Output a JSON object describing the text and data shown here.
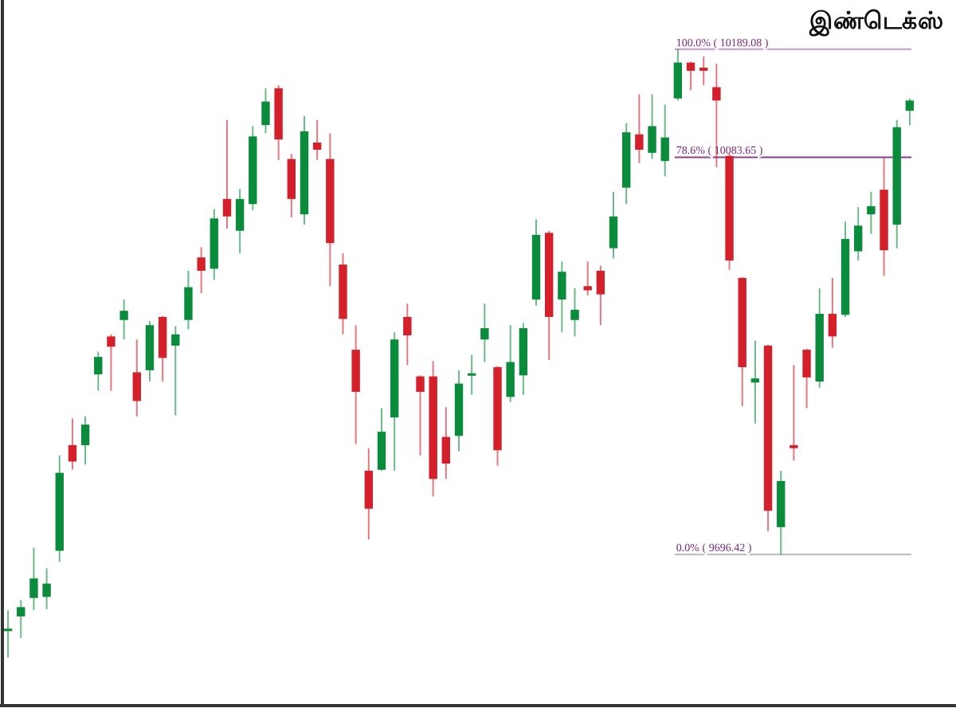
{
  "chart_data": {
    "type": "candlestick",
    "title": "இண்டெக்ஸ்",
    "ylim": [
      9549,
      10237
    ],
    "categories": [
      null,
      null,
      null,
      null,
      null,
      null,
      null,
      null,
      null,
      null,
      null,
      null,
      null,
      null,
      null,
      null,
      null,
      null,
      null,
      null,
      null,
      null,
      null,
      null,
      null,
      null,
      null,
      null,
      null,
      null,
      null,
      null,
      null,
      null,
      null,
      null,
      null,
      null,
      null,
      null,
      null,
      null,
      null,
      null,
      null,
      null,
      null,
      null,
      null,
      null,
      null,
      null,
      null,
      null,
      null,
      null,
      null,
      null,
      null,
      null,
      null,
      null,
      null,
      null,
      null,
      null,
      null,
      null,
      null,
      null,
      null
    ],
    "ohlc": [
      [
        9623,
        9642,
        9596,
        9624
      ],
      [
        9636,
        9652,
        9615,
        9645
      ],
      [
        9654,
        9703,
        9642,
        9673
      ],
      [
        9655,
        9683,
        9643,
        9668
      ],
      [
        9700,
        9793,
        9689,
        9776
      ],
      [
        9803,
        9829,
        9779,
        9787
      ],
      [
        9803,
        9831,
        9784,
        9823
      ],
      [
        9872,
        9894,
        9856,
        9889
      ],
      [
        9909,
        9911,
        9856,
        9899
      ],
      [
        9925,
        9945,
        9906,
        9934
      ],
      [
        9874,
        9906,
        9831,
        9846
      ],
      [
        9876,
        9924,
        9865,
        9920
      ],
      [
        9928,
        9929,
        9865,
        9888
      ],
      [
        9900,
        9919,
        9832,
        9911
      ],
      [
        9925,
        9973,
        9916,
        9957
      ],
      [
        9986,
        9996,
        9951,
        9973
      ],
      [
        9975,
        10033,
        9964,
        10024
      ],
      [
        10043,
        10120,
        10014,
        10026
      ],
      [
        10012,
        10053,
        9990,
        10043
      ],
      [
        10038,
        10114,
        10032,
        10104
      ],
      [
        10115,
        10151,
        10107,
        10138
      ],
      [
        10151,
        10154,
        10081,
        10101
      ],
      [
        10082,
        10087,
        10025,
        10043
      ],
      [
        10028,
        10124,
        10018,
        10109
      ],
      [
        10098,
        10120,
        10081,
        10091
      ],
      [
        10082,
        10107,
        9958,
        10000
      ],
      [
        9979,
        9990,
        9911,
        9926
      ],
      [
        9896,
        9920,
        9804,
        9855
      ],
      [
        9778,
        9800,
        9711,
        9741
      ],
      [
        9779,
        9839,
        9778,
        9816
      ],
      [
        9830,
        9913,
        9778,
        9906
      ],
      [
        9928,
        9941,
        9881,
        9910
      ],
      [
        9870,
        9871,
        9793,
        9855
      ],
      [
        9870,
        9885,
        9753,
        9770
      ],
      [
        9811,
        9840,
        9770,
        9785
      ],
      [
        9812,
        9876,
        9797,
        9863
      ],
      [
        9872,
        9891,
        9852,
        9873
      ],
      [
        9906,
        9941,
        9884,
        9917
      ],
      [
        9879,
        9880,
        9783,
        9798
      ],
      [
        9850,
        9920,
        9845,
        9884
      ],
      [
        9871,
        9922,
        9852,
        9917
      ],
      [
        9945,
        10023,
        9939,
        10008
      ],
      [
        10010,
        10012,
        9886,
        9928
      ],
      [
        9945,
        9982,
        9913,
        9972
      ],
      [
        9925,
        9956,
        9909,
        9935
      ],
      [
        9958,
        9982,
        9949,
        9954
      ],
      [
        9973,
        9978,
        9920,
        9950
      ],
      [
        9995,
        10050,
        9985,
        10026
      ],
      [
        10054,
        10117,
        10038,
        10108
      ],
      [
        10106,
        10145,
        10078,
        10091
      ],
      [
        10088,
        10145,
        10082,
        10114
      ],
      [
        10080,
        10135,
        10065,
        10103
      ],
      [
        10141,
        10189.08,
        10139,
        10176
      ],
      [
        10176,
        10177,
        10149,
        10168
      ],
      [
        10171,
        10182,
        10154,
        10168
      ],
      [
        10152,
        10175,
        10074,
        10139
      ],
      [
        10085,
        10087,
        9974,
        9983
      ],
      [
        9966,
        9967,
        9841,
        9879
      ],
      [
        9864,
        9905,
        9824,
        9868
      ],
      [
        9900,
        9901,
        9719,
        9739
      ],
      [
        9723,
        9778,
        9696.42,
        9768
      ],
      [
        9803,
        9881,
        9788,
        9800
      ],
      [
        9896,
        9897,
        9839,
        9869
      ],
      [
        9865,
        9956,
        9859,
        9931
      ],
      [
        9931,
        9966,
        9898,
        9909
      ],
      [
        9930,
        10021,
        9928,
        10004
      ],
      [
        9992,
        10035,
        9983,
        10017
      ],
      [
        10028,
        10050,
        10009,
        10036
      ],
      [
        10052,
        10083,
        9968,
        9993
      ],
      [
        10018,
        10120,
        9995,
        10113
      ],
      [
        10129,
        10141,
        10115,
        10139
      ]
    ],
    "colors": [
      "#0b8c3c",
      "#0b8c3c",
      "#0b8c3c",
      "#0b8c3c",
      "#0b8c3c",
      "#d3202a",
      "#0b8c3c",
      "#0b8c3c",
      "#d3202a",
      "#0b8c3c",
      "#d3202a",
      "#0b8c3c",
      "#d3202a",
      "#0b8c3c",
      "#0b8c3c",
      "#d3202a",
      "#0b8c3c",
      "#d3202a",
      "#0b8c3c",
      "#0b8c3c",
      "#0b8c3c",
      "#d3202a",
      "#d3202a",
      "#0b8c3c",
      "#d3202a",
      "#d3202a",
      "#d3202a",
      "#d3202a",
      "#d3202a",
      "#0b8c3c",
      "#0b8c3c",
      "#d3202a",
      "#d3202a",
      "#d3202a",
      "#d3202a",
      "#0b8c3c",
      "#0b8c3c",
      "#0b8c3c",
      "#d3202a",
      "#0b8c3c",
      "#0b8c3c",
      "#0b8c3c",
      "#d3202a",
      "#0b8c3c",
      "#0b8c3c",
      "#d3202a",
      "#d3202a",
      "#0b8c3c",
      "#0b8c3c",
      "#d3202a",
      "#0b8c3c",
      "#0b8c3c",
      "#0b8c3c",
      "#d3202a",
      "#d3202a",
      "#d3202a",
      "#d3202a",
      "#d3202a",
      "#0b8c3c",
      "#d3202a",
      "#0b8c3c",
      "#d3202a",
      "#d3202a",
      "#0b8c3c",
      "#d3202a",
      "#0b8c3c",
      "#0b8c3c",
      "#0b8c3c",
      "#d3202a",
      "#0b8c3c",
      "#0b8c3c"
    ],
    "ref_lines": [
      {
        "axis": "y",
        "value": 10189.08,
        "label": "100.0% ( 10189.08 )",
        "color": "#c995d0"
      },
      {
        "axis": "y",
        "value": 10083.65,
        "label": "78.6% ( 10083.65 )",
        "color": "#8e3c8e"
      },
      {
        "axis": "y",
        "value": 9696.42,
        "label": "0.0% ( 9696.42 )",
        "color": "#b9b9b9"
      }
    ]
  }
}
